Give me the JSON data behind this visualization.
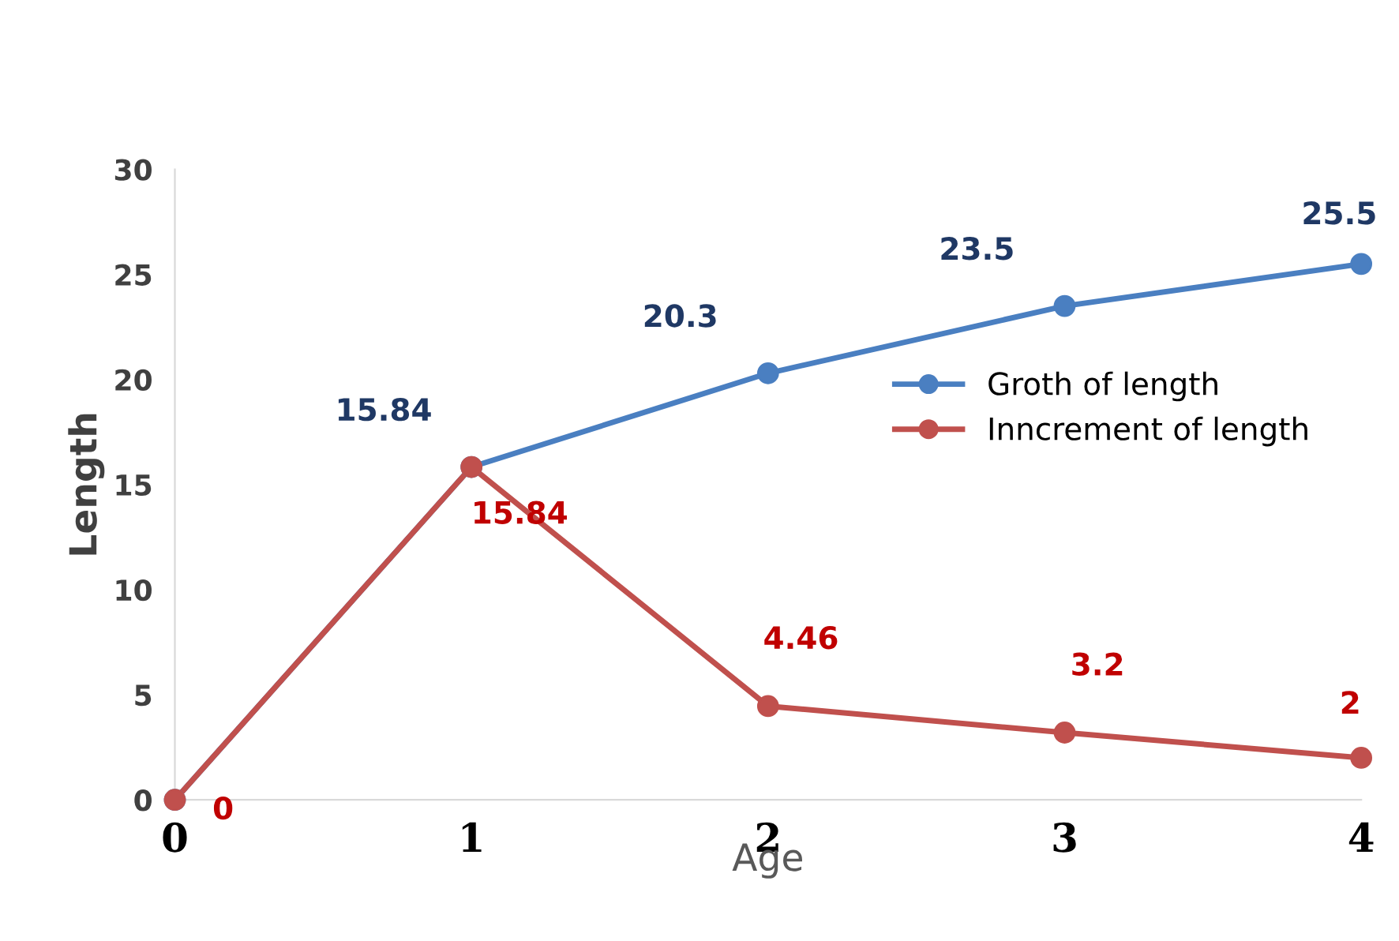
{
  "chart_data": {
    "type": "line",
    "xlabel": "Age",
    "ylabel": "Length",
    "x": [
      0,
      1,
      2,
      3,
      4
    ],
    "series": [
      {
        "name": "Groth of length",
        "color": "#4a7fc1",
        "values": [
          0,
          15.84,
          20.3,
          23.5,
          25.5
        ],
        "value_labels": [
          null,
          "15.84",
          "20.3",
          "23.5",
          "25.5"
        ]
      },
      {
        "name": "Inncrement of length",
        "color": "#c0504d",
        "values": [
          0,
          15.84,
          4.46,
          3.2,
          2
        ],
        "value_labels": [
          "0",
          "15.84",
          "4.46",
          "3.2",
          "2"
        ]
      }
    ],
    "xlim": [
      0,
      4
    ],
    "xticks": [
      0,
      1,
      2,
      3,
      4
    ],
    "ylim": [
      0,
      30
    ],
    "yticks": [
      0,
      5,
      10,
      15,
      20,
      25,
      30
    ],
    "grid": false,
    "legend": "right",
    "marker": "circle",
    "line_style": "solid"
  }
}
